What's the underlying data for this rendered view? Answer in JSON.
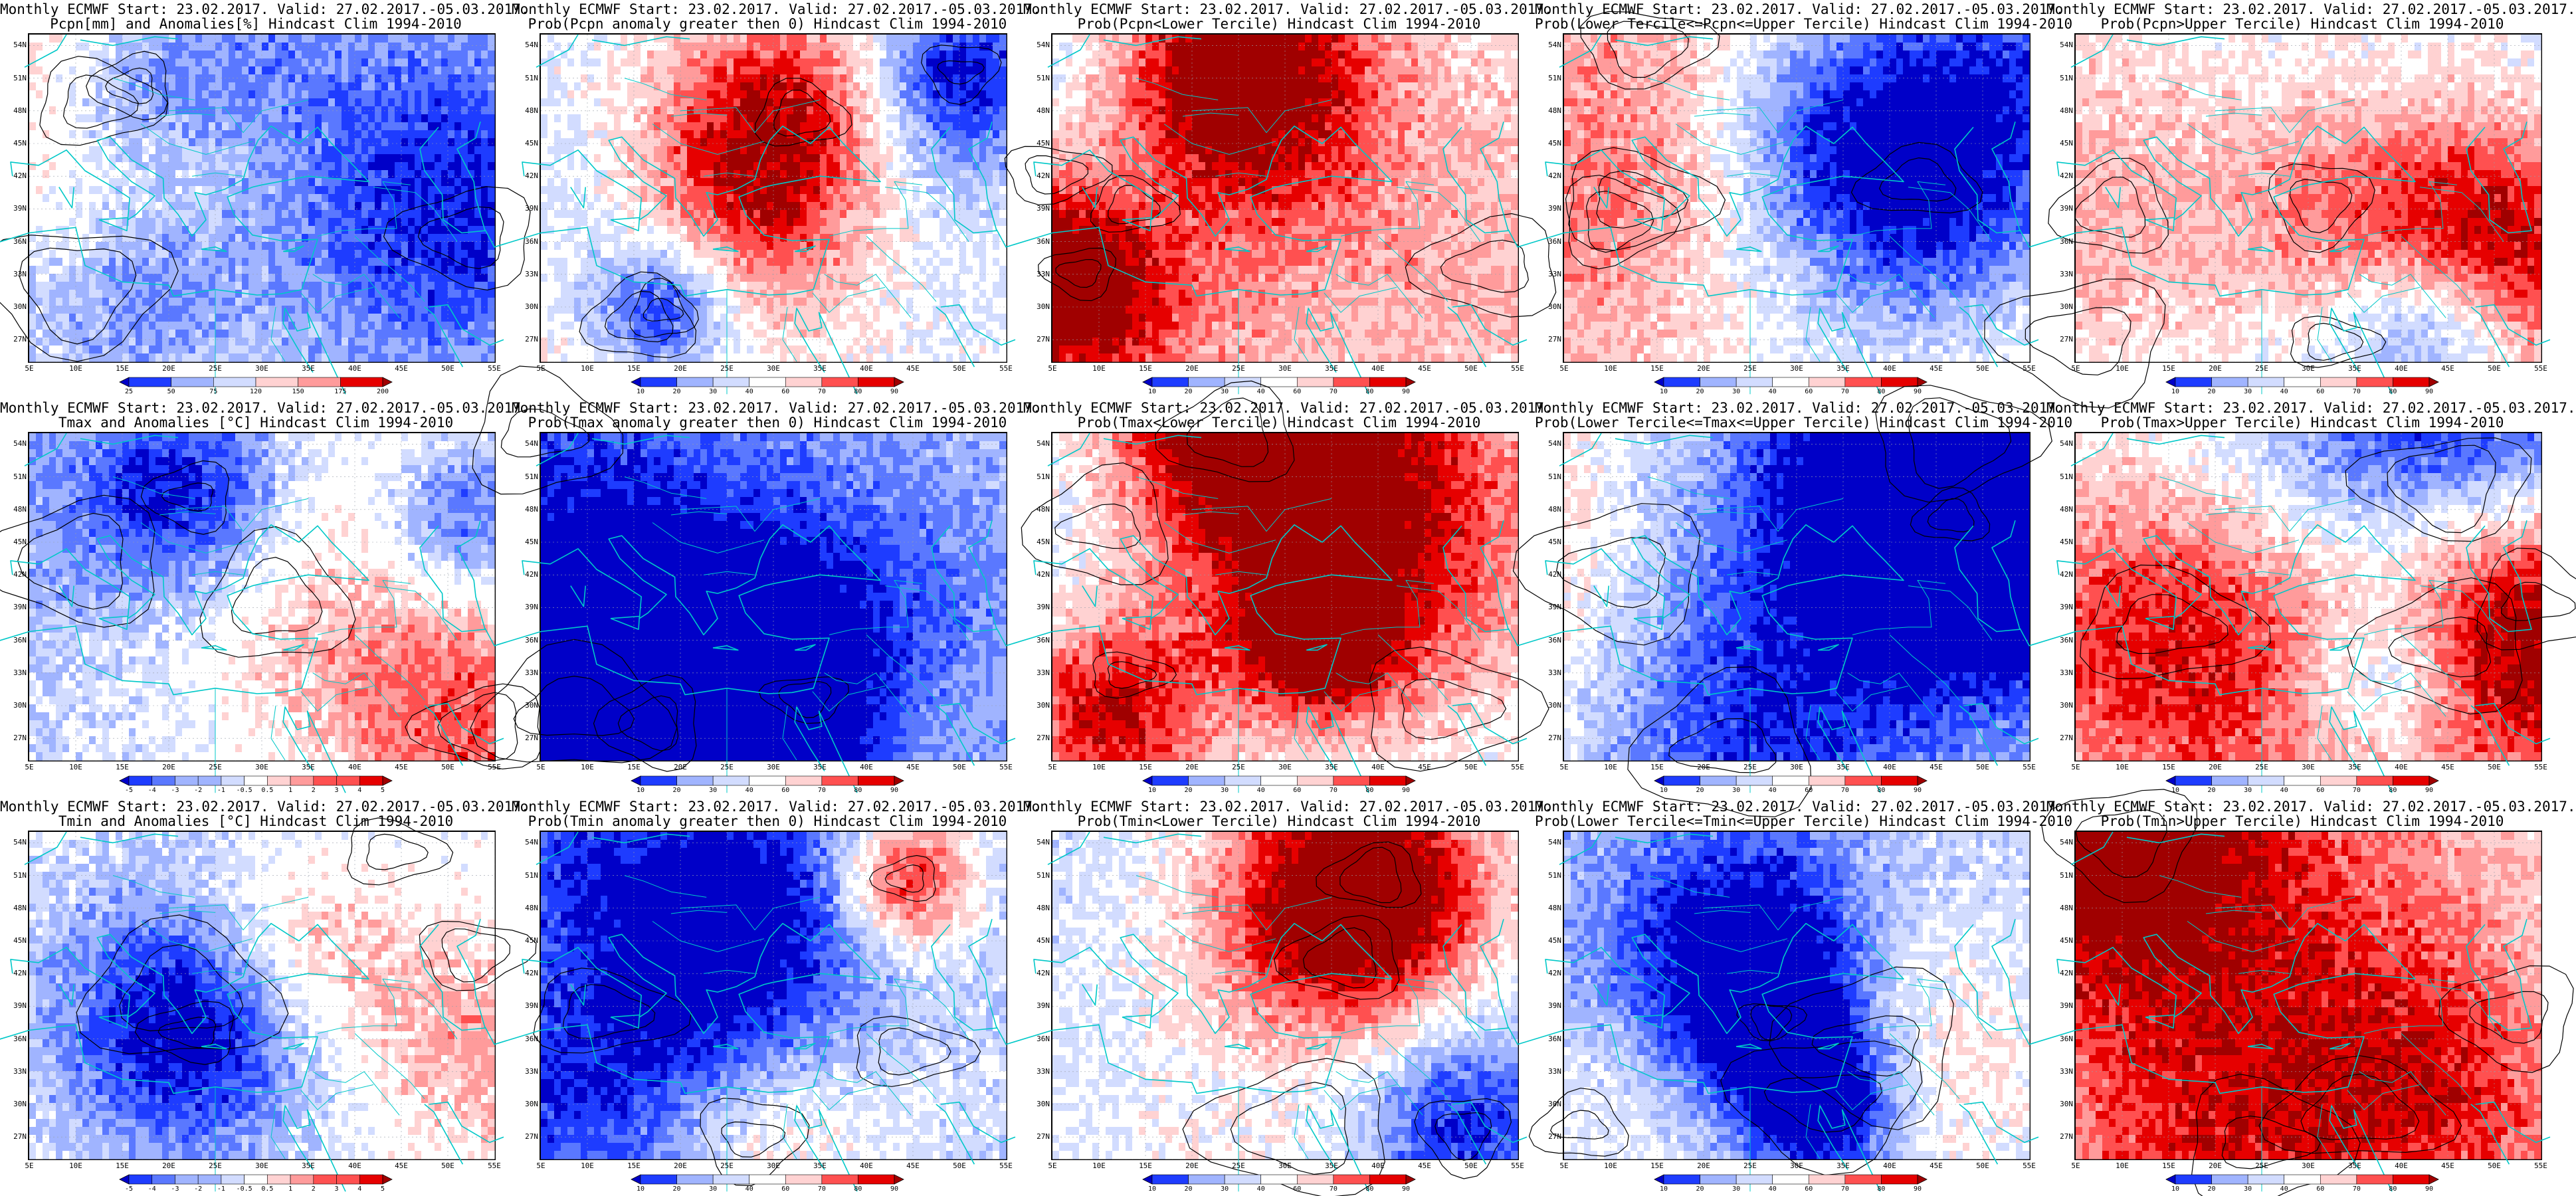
{
  "rows": [
    {
      "variable": "Pcpn",
      "legend": [
        "25",
        "50",
        "75",
        "120",
        "150",
        "175",
        "200"
      ],
      "panels": [
        {
          "id": "pcpn-anom",
          "line1": "Monthly ECMWF Start: 23.02.2017. Valid: 27.02.2017.-05.03.2017.",
          "line2": "Pcpn[mm] and Anomalies[%] Hindcast Clim 1994-2010",
          "field": "anomaly"
        },
        {
          "id": "pcpn-gt0",
          "line1": "Monthly ECMWF Start: 23.02.2017. Valid: 27.02.2017.-05.03.2017.",
          "line2": "Prob(Pcpn anomaly greater then 0) Hindcast Clim 1994-2010",
          "field": "prob"
        },
        {
          "id": "pcpn-lower",
          "line1": "Monthly ECMWF Start: 23.02.2017. Valid: 27.02.2017.-05.03.2017.",
          "line2": "Prob(Pcpn<Lower Tercile) Hindcast Clim 1994-2010",
          "field": "prob"
        },
        {
          "id": "pcpn-middle",
          "line1": "Monthly ECMWF Start: 23.02.2017. Valid: 27.02.2017.-05.03.2017.",
          "line2": "Prob(Lower Tercile<=Pcpn<=Upper Tercile) Hindcast Clim 1994-2010",
          "field": "prob"
        },
        {
          "id": "pcpn-upper",
          "line1": "Monthly ECMWF Start: 23.02.2017. Valid: 27.02.2017.-05.03.2017.",
          "line2": "Prob(Pcpn>Upper Tercile) Hindcast Clim 1994-2010",
          "field": "prob"
        }
      ]
    },
    {
      "variable": "Tmax",
      "legend": [
        "-5",
        "-4",
        "-3",
        "-2",
        "-1",
        "-0.5",
        "0.5",
        "1",
        "2",
        "3",
        "4",
        "5"
      ],
      "panels": [
        {
          "id": "tmax-anom",
          "line1": "Monthly ECMWF Start: 23.02.2017. Valid: 27.02.2017.-05.03.2017.",
          "line2": "Tmax and Anomalies [°C] Hindcast Clim 1994-2010",
          "field": "anomaly"
        },
        {
          "id": "tmax-gt0",
          "line1": "Monthly ECMWF Start: 23.02.2017. Valid: 27.02.2017.-05.03.2017.",
          "line2": "Prob(Tmax anomaly greater then 0) Hindcast Clim 1994-2010",
          "field": "prob"
        },
        {
          "id": "tmax-lower",
          "line1": "Monthly ECMWF Start: 23.02.2017. Valid: 27.02.2017.-05.03.2017.",
          "line2": "Prob(Tmax<Lower Tercile) Hindcast Clim 1994-2010",
          "field": "prob"
        },
        {
          "id": "tmax-middle",
          "line1": "Monthly ECMWF Start: 23.02.2017. Valid: 27.02.2017.-05.03.2017.",
          "line2": "Prob(Lower Tercile<=Tmax<=Upper Tercile) Hindcast Clim 1994-2010",
          "field": "prob"
        },
        {
          "id": "tmax-upper",
          "line1": "Monthly ECMWF Start: 23.02.2017. Valid: 27.02.2017.-05.03.2017.",
          "line2": "Prob(Tmax>Upper Tercile) Hindcast Clim 1994-2010",
          "field": "prob"
        }
      ]
    },
    {
      "variable": "Tmin",
      "legend": [
        "-5",
        "-4",
        "-3",
        "-2",
        "-1",
        "-0.5",
        "0.5",
        "1",
        "2",
        "3",
        "4",
        "5"
      ],
      "panels": [
        {
          "id": "tmin-anom",
          "line1": "Monthly ECMWF Start: 23.02.2017. Valid: 27.02.2017.-05.03.2017.",
          "line2": "Tmin and Anomalies [°C] Hindcast Clim 1994-2010",
          "field": "anomaly"
        },
        {
          "id": "tmin-gt0",
          "line1": "Monthly ECMWF Start: 23.02.2017. Valid: 27.02.2017.-05.03.2017.",
          "line2": "Prob(Tmin anomaly greater then 0) Hindcast Clim 1994-2010",
          "field": "prob"
        },
        {
          "id": "tmin-lower",
          "line1": "Monthly ECMWF Start: 23.02.2017. Valid: 27.02.2017.-05.03.2017.",
          "line2": "Prob(Tmin<Lower Tercile) Hindcast Clim 1994-2010",
          "field": "prob"
        },
        {
          "id": "tmin-middle",
          "line1": "Monthly ECMWF Start: 23.02.2017. Valid: 27.02.2017.-05.03.2017.",
          "line2": "Prob(Lower Tercile<=Tmin<=Upper Tercile) Hindcast Clim 1994-2010",
          "field": "prob"
        },
        {
          "id": "tmin-upper",
          "line1": "Monthly ECMWF Start: 23.02.2017. Valid: 27.02.2017.-05.03.2017.",
          "line2": "Prob(Tmin>Upper Tercile) Hindcast Clim 1994-2010",
          "field": "prob"
        }
      ]
    }
  ],
  "prob_legend": [
    "10",
    "20",
    "30",
    "40",
    "60",
    "70",
    "80",
    "90"
  ],
  "lat_labels": [
    "54N",
    "51N",
    "48N",
    "45N",
    "42N",
    "39N",
    "36N",
    "33N",
    "30N",
    "27N"
  ],
  "lon_labels": [
    "5E",
    "10E",
    "15E",
    "20E",
    "25E",
    "30E",
    "35E",
    "40E",
    "45E",
    "50E",
    "55E"
  ],
  "colors": {
    "scale": [
      "#0000c8",
      "#1e3cff",
      "#5a78ff",
      "#a0b4ff",
      "#d2dcff",
      "#ffffff",
      "#ffd2d2",
      "#ff9b9b",
      "#ff5050",
      "#e60000",
      "#a00000"
    ],
    "coast": "#00c8c8",
    "contour": "#000000",
    "gridline": "#9aa0aa"
  }
}
